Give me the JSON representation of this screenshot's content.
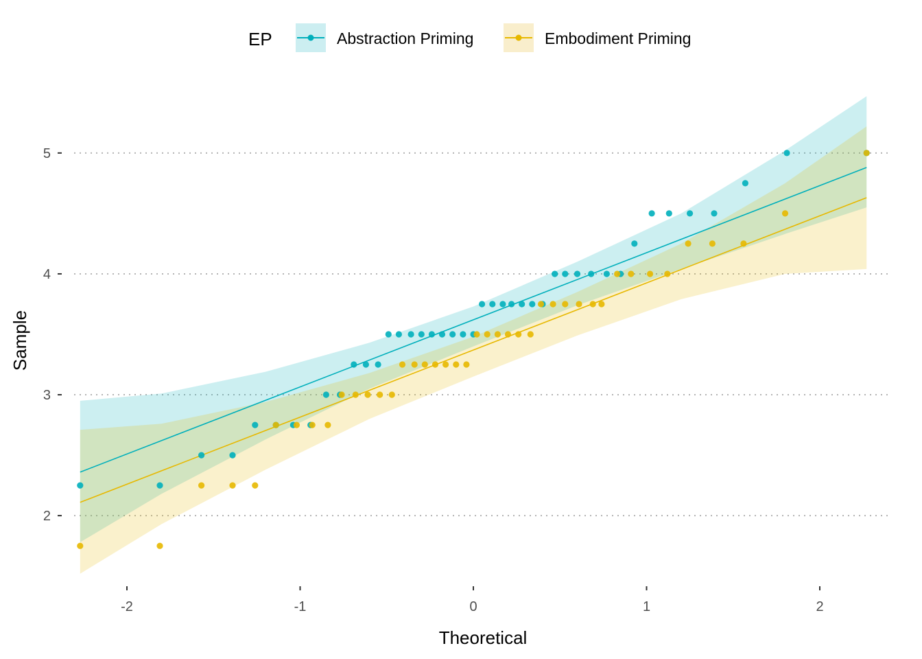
{
  "chart_data": {
    "type": "scatter",
    "xlabel": "Theoretical",
    "ylabel": "Sample",
    "xlim": [
      -2.4,
      2.4
    ],
    "ylim": [
      1.45,
      5.55
    ],
    "x_ticks": [
      -2,
      -1,
      0,
      1,
      2
    ],
    "x_tick_labels": [
      "-2",
      "-1",
      "0",
      "1",
      "2"
    ],
    "y_ticks": [
      2,
      3,
      4,
      5
    ],
    "y_tick_labels": [
      "2",
      "3",
      "4",
      "5"
    ],
    "grid": "horizontal-dotted",
    "legend": {
      "title": "EP",
      "position": "top",
      "entries": [
        "Abstraction Priming",
        "Embodiment Priming"
      ]
    },
    "series": [
      {
        "name": "Abstraction Priming",
        "color": "#00AFBB",
        "fill": "#CCEEF1",
        "line": {
          "x": [
            -2.27,
            2.27
          ],
          "y": [
            2.36,
            4.88
          ]
        },
        "band": {
          "x": [
            -2.27,
            -1.8,
            -1.2,
            -0.6,
            0.0,
            0.6,
            1.2,
            1.8,
            2.27
          ],
          "lower": [
            1.78,
            2.18,
            2.63,
            3.05,
            3.4,
            3.74,
            4.04,
            4.33,
            4.55
          ],
          "upper": [
            2.95,
            3.01,
            3.19,
            3.43,
            3.73,
            4.1,
            4.5,
            5.02,
            5.47
          ]
        },
        "points": {
          "x": [
            -2.27,
            -1.81,
            -1.57,
            -1.39,
            -1.26,
            -1.14,
            -1.04,
            -0.94,
            -0.85,
            -0.77,
            -0.69,
            -0.62,
            -0.55,
            -0.49,
            -0.43,
            -0.36,
            -0.3,
            -0.24,
            -0.18,
            -0.12,
            -0.06,
            0.0,
            0.05,
            0.11,
            0.17,
            0.22,
            0.28,
            0.34,
            0.4,
            0.47,
            0.53,
            0.6,
            0.68,
            0.77,
            0.85,
            0.93,
            1.03,
            1.13,
            1.25,
            1.39,
            1.57,
            1.81,
            2.27
          ],
          "y": [
            2.25,
            2.25,
            2.5,
            2.5,
            2.75,
            2.75,
            2.75,
            2.75,
            3.0,
            3.0,
            3.25,
            3.25,
            3.25,
            3.5,
            3.5,
            3.5,
            3.5,
            3.5,
            3.5,
            3.5,
            3.5,
            3.5,
            3.75,
            3.75,
            3.75,
            3.75,
            3.75,
            3.75,
            3.75,
            4.0,
            4.0,
            4.0,
            4.0,
            4.0,
            4.0,
            4.25,
            4.5,
            4.5,
            4.5,
            4.5,
            4.75,
            5.0,
            5.0
          ]
        }
      },
      {
        "name": "Embodiment Priming",
        "color": "#E7B800",
        "fill": "#F9EECC",
        "line": {
          "x": [
            -2.27,
            2.27
          ],
          "y": [
            2.11,
            4.63
          ]
        },
        "band": {
          "x": [
            -2.27,
            -1.8,
            -1.2,
            -0.6,
            0.0,
            0.6,
            1.2,
            1.8,
            2.27
          ],
          "lower": [
            1.52,
            1.93,
            2.38,
            2.8,
            3.15,
            3.49,
            3.79,
            4.0,
            4.04
          ],
          "upper": [
            2.71,
            2.76,
            2.94,
            3.18,
            3.48,
            3.85,
            4.25,
            4.75,
            5.22
          ]
        },
        "points": {
          "x": [
            -2.27,
            -1.81,
            -1.57,
            -1.39,
            -1.26,
            -1.14,
            -1.02,
            -0.93,
            -0.84,
            -0.76,
            -0.68,
            -0.61,
            -0.54,
            -0.47,
            -0.41,
            -0.34,
            -0.28,
            -0.22,
            -0.16,
            -0.1,
            -0.04,
            0.02,
            0.08,
            0.14,
            0.2,
            0.26,
            0.33,
            0.39,
            0.46,
            0.53,
            0.61,
            0.69,
            0.74,
            0.83,
            0.91,
            1.02,
            1.12,
            1.24,
            1.38,
            1.56,
            1.8,
            2.27
          ],
          "y": [
            1.75,
            1.75,
            2.25,
            2.25,
            2.25,
            2.75,
            2.75,
            2.75,
            2.75,
            3.0,
            3.0,
            3.0,
            3.0,
            3.0,
            3.25,
            3.25,
            3.25,
            3.25,
            3.25,
            3.25,
            3.25,
            3.5,
            3.5,
            3.5,
            3.5,
            3.5,
            3.5,
            3.75,
            3.75,
            3.75,
            3.75,
            3.75,
            3.75,
            4.0,
            4.0,
            4.0,
            4.0,
            4.25,
            4.25,
            4.25,
            4.5,
            5.0
          ]
        }
      }
    ]
  }
}
